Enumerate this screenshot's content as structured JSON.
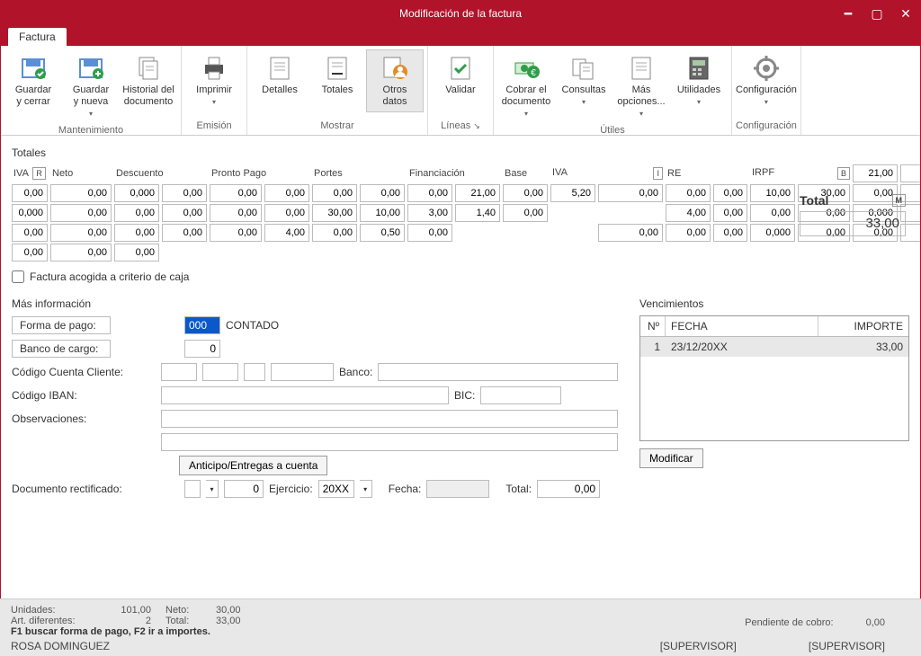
{
  "window": {
    "title": "Modificación de la factura"
  },
  "tab": {
    "label": "Factura"
  },
  "ribbon": {
    "groups": [
      {
        "label": "Mantenimiento",
        "buttons": [
          {
            "name": "guardar-cerrar",
            "label": "Guardar\ny cerrar",
            "drop": false
          },
          {
            "name": "guardar-nueva",
            "label": "Guardar\ny nueva",
            "drop": true
          },
          {
            "name": "historial",
            "label": "Historial del\ndocumento",
            "drop": false
          }
        ]
      },
      {
        "label": "Emisión",
        "buttons": [
          {
            "name": "imprimir",
            "label": "Imprimir",
            "drop": true
          }
        ]
      },
      {
        "label": "Mostrar",
        "buttons": [
          {
            "name": "detalles",
            "label": "Detalles",
            "drop": false
          },
          {
            "name": "totales",
            "label": "Totales",
            "drop": false
          },
          {
            "name": "otros-datos",
            "label": "Otros\ndatos",
            "drop": false,
            "selected": true
          }
        ]
      },
      {
        "label": "Líneas",
        "buttons": [
          {
            "name": "validar",
            "label": "Validar",
            "drop": false
          }
        ]
      },
      {
        "label": "Útiles",
        "buttons": [
          {
            "name": "cobrar",
            "label": "Cobrar el\ndocumento",
            "drop": true
          },
          {
            "name": "consultas",
            "label": "Consultas",
            "drop": true
          },
          {
            "name": "mas-opciones",
            "label": "Más\nopciones...",
            "drop": true
          },
          {
            "name": "utilidades",
            "label": "Utilidades",
            "drop": true
          }
        ]
      },
      {
        "label": "Configuración",
        "buttons": [
          {
            "name": "configuracion",
            "label": "Configuración",
            "drop": true
          }
        ]
      }
    ]
  },
  "totales": {
    "title": "Totales",
    "headers": [
      "IVA",
      "Neto",
      "Descuento",
      "",
      "Pronto Pago",
      "",
      "Portes",
      "",
      "Financiación",
      "",
      "Base",
      "IVA",
      "",
      "RE",
      "",
      "IRPF",
      ""
    ],
    "badges": {
      "iva_r": "R",
      "iva_i": "I",
      "irpf_b": "B",
      "total_m": "M"
    },
    "rows": [
      [
        "21,00",
        "0,00",
        "0,00",
        "0,00",
        "0,000",
        "0,00",
        "0,00",
        "0,00",
        "0,00",
        "0,00",
        "0,00",
        "21,00",
        "0,00",
        "5,20",
        "0,00",
        "0,00",
        "0,00"
      ],
      [
        "10,00",
        "30,00",
        "0,00",
        "0,00",
        "0,000",
        "0,00",
        "0,00",
        "0,00",
        "0,00",
        "0,00",
        "30,00",
        "10,00",
        "3,00",
        "1,40",
        "0,00",
        "",
        ""
      ],
      [
        "4,00",
        "0,00",
        "0,00",
        "0,00",
        "0,000",
        "0,00",
        "0,00",
        "0,00",
        "0,00",
        "0,00",
        "0,00",
        "4,00",
        "0,00",
        "0,50",
        "0,00",
        "",
        ""
      ],
      [
        "",
        "0,00",
        "0,00",
        "0,00",
        "0,000",
        "0,00",
        "0,00",
        "0,00",
        "0,00",
        "0,00",
        "0,00",
        "",
        "",
        "",
        "",
        "",
        ""
      ]
    ],
    "total_label": "Total",
    "total_value": "33,00",
    "checkbox_label": "Factura acogida a criterio de caja",
    "checkbox_checked": false
  },
  "mas_info": {
    "title": "Más información",
    "forma_pago_label": "Forma de pago:",
    "forma_pago_code": "000",
    "forma_pago_text": "CONTADO",
    "banco_cargo_label": "Banco de cargo:",
    "banco_cargo_value": "0",
    "ccc_label": "Código Cuenta Cliente:",
    "banco_label": "Banco:",
    "iban_label": "Código IBAN:",
    "bic_label": "BIC:",
    "obs_label": "Observaciones:",
    "anticipo_btn": "Anticipo/Entregas a cuenta",
    "doc_rect_label": "Documento rectificado:",
    "doc_rect_num": "0",
    "ejercicio_label": "Ejercicio:",
    "ejercicio_value": "20XX",
    "fecha_label": "Fecha:",
    "total_label": "Total:",
    "total_value": "0,00"
  },
  "venc": {
    "title": "Vencimientos",
    "headers": {
      "num": "Nº",
      "fecha": "FECHA",
      "importe": "IMPORTE"
    },
    "row": {
      "num": "1",
      "fecha": "23/12/20XX",
      "importe": "33,00"
    },
    "modificar_btn": "Modificar"
  },
  "status": {
    "unidades_label": "Unidades:",
    "unidades": "101,00",
    "neto_label": "Neto:",
    "neto": "30,00",
    "art_label": "Art. diferentes:",
    "art": "2",
    "total_label": "Total:",
    "total": "33,00",
    "hint": "F1 buscar forma de pago, F2 ir a importes.",
    "pendiente_label": "Pendiente de cobro:",
    "pendiente": "0,00",
    "user": "ROSA DOMINGUEZ",
    "supervisor1": "[SUPERVISOR]",
    "supervisor2": "[SUPERVISOR]"
  },
  "colors": {
    "brand": "#b0132a",
    "accent_green": "#2e9e4a",
    "accent_orange": "#e38b2a"
  }
}
